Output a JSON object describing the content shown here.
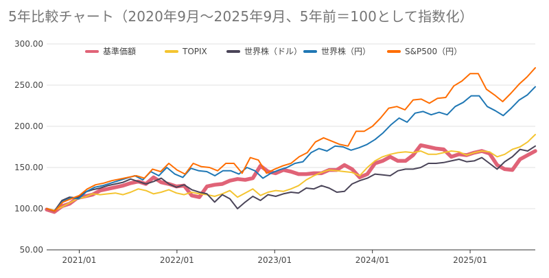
{
  "chart_data": {
    "type": "line",
    "title": "5年比較チャート（2020年9月〜2025年9月、5年前＝100として指数化）",
    "xlabel": "",
    "ylabel": "",
    "ylim": [
      50,
      300
    ],
    "yticks": [
      "300.00",
      "250.00",
      "200.00",
      "150.00",
      "100.00",
      "50.00"
    ],
    "xticks": [
      {
        "label": "2021/01",
        "date": "2021-01"
      },
      {
        "label": "2022/01",
        "date": "2022-01"
      },
      {
        "label": "2023/01",
        "date": "2023-01"
      },
      {
        "label": "2024/01",
        "date": "2024-01"
      },
      {
        "label": "2025/01",
        "date": "2025-01"
      }
    ],
    "x_start": "2020-09",
    "legend_position": "top",
    "grid": true,
    "series": [
      {
        "name": "基準価額",
        "color": "#e06377",
        "width": 5.5,
        "values": [
          99,
          96,
          103,
          106,
          113,
          115,
          117,
          122,
          124,
          126,
          128,
          131,
          133,
          130,
          138,
          132,
          130,
          127,
          128,
          116,
          114,
          127,
          129,
          130,
          134,
          136,
          135,
          137,
          152,
          145,
          143,
          147,
          145,
          142,
          142,
          143,
          143,
          147,
          147,
          153,
          148,
          138,
          142,
          155,
          158,
          163,
          158,
          158,
          165,
          177,
          175,
          173,
          172,
          163,
          166,
          165,
          168,
          170,
          167,
          153,
          148,
          147,
          160,
          165,
          170
        ]
      },
      {
        "name": "TOPIX",
        "color": "#f4c430",
        "width": 2,
        "values": [
          100,
          98,
          102,
          107,
          112,
          114,
          118,
          117,
          118,
          119,
          117,
          120,
          124,
          122,
          118,
          120,
          123,
          119,
          117,
          120,
          118,
          117,
          115,
          118,
          122,
          114,
          119,
          124,
          116,
          120,
          122,
          121,
          124,
          128,
          135,
          140,
          144,
          147,
          146,
          145,
          144,
          140,
          150,
          158,
          163,
          166,
          168,
          169,
          168,
          170,
          166,
          166,
          168,
          170,
          169,
          165,
          168,
          170,
          169,
          163,
          166,
          172,
          175,
          181,
          190
        ]
      },
      {
        "name": "世界株（ドル）",
        "color": "#4a4458",
        "width": 2,
        "values": [
          100,
          97,
          110,
          114,
          113,
          120,
          123,
          125,
          128,
          130,
          132,
          136,
          133,
          130,
          133,
          137,
          130,
          126,
          129,
          123,
          120,
          118,
          108,
          117,
          112,
          100,
          108,
          115,
          110,
          117,
          115,
          118,
          120,
          119,
          125,
          124,
          128,
          125,
          120,
          121,
          130,
          134,
          137,
          142,
          141,
          140,
          146,
          148,
          148,
          150,
          155,
          155,
          156,
          158,
          160,
          157,
          158,
          162,
          155,
          148,
          157,
          163,
          172,
          170,
          176
        ]
      },
      {
        "name": "世界株（円）",
        "color": "#1f77b4",
        "width": 2,
        "values": [
          100,
          97,
          109,
          113,
          112,
          121,
          126,
          128,
          131,
          134,
          137,
          140,
          135,
          145,
          140,
          150,
          142,
          138,
          149,
          146,
          145,
          140,
          146,
          146,
          142,
          150,
          146,
          137,
          143,
          147,
          150,
          155,
          157,
          168,
          173,
          170,
          176,
          175,
          171,
          174,
          178,
          184,
          192,
          202,
          210,
          205,
          216,
          218,
          214,
          217,
          214,
          224,
          229,
          237,
          237,
          224,
          219,
          213,
          222,
          232,
          238,
          248
        ]
      },
      {
        "name": "S&P500（円）",
        "color": "#ff6d00",
        "width": 2,
        "values": [
          100,
          97,
          108,
          112,
          116,
          124,
          129,
          131,
          134,
          136,
          138,
          140,
          137,
          148,
          145,
          155,
          147,
          142,
          155,
          151,
          150,
          146,
          155,
          155,
          143,
          162,
          159,
          143,
          148,
          152,
          155,
          163,
          168,
          181,
          186,
          182,
          178,
          176,
          194,
          194,
          200,
          210,
          222,
          224,
          220,
          232,
          233,
          228,
          234,
          235,
          249,
          255,
          264,
          264,
          245,
          238,
          230,
          240,
          251,
          260,
          271
        ]
      }
    ]
  }
}
